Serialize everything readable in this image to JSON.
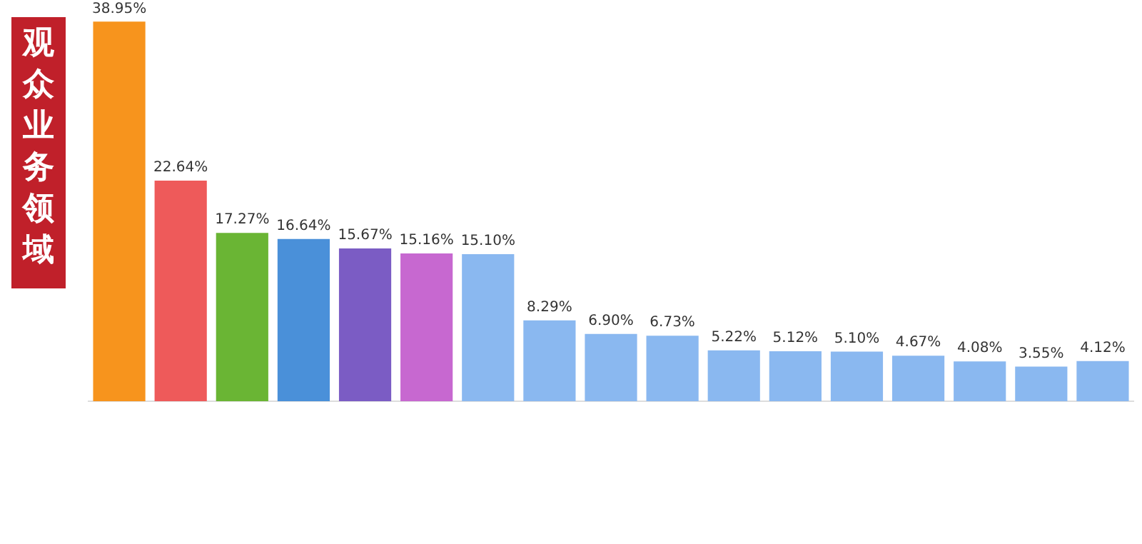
{
  "chart_data": {
    "type": "bar",
    "title": "观众业务领域",
    "categories": [
      null,
      null,
      null,
      null,
      null,
      null,
      null,
      null,
      null,
      null,
      null,
      null,
      null,
      null,
      null,
      null,
      null
    ],
    "values": [
      38.95,
      22.64,
      17.27,
      16.64,
      15.67,
      15.16,
      15.1,
      8.29,
      6.9,
      6.73,
      5.22,
      5.12,
      5.1,
      4.67,
      4.08,
      3.55,
      4.12
    ],
    "colors": [
      "#f7941d",
      "#ee5a5a",
      "#6ab534",
      "#4a90d9",
      "#7b5cc4",
      "#c768d0",
      "#8ab8f0",
      "#8ab8f0",
      "#8ab8f0",
      "#8ab8f0",
      "#8ab8f0",
      "#8ab8f0",
      "#8ab8f0",
      "#8ab8f0",
      "#8ab8f0",
      "#8ab8f0",
      "#8ab8f0"
    ],
    "value_labels": [
      "38.95%",
      "22.64%",
      "17.27%",
      "16.64%",
      "15.67%",
      "15.16%",
      "15.10%",
      "8.29%",
      "6.90%",
      "6.73%",
      "5.22%",
      "5.12%",
      "5.10%",
      "4.67%",
      "4.08%",
      "3.55%",
      "4.12%"
    ]
  }
}
